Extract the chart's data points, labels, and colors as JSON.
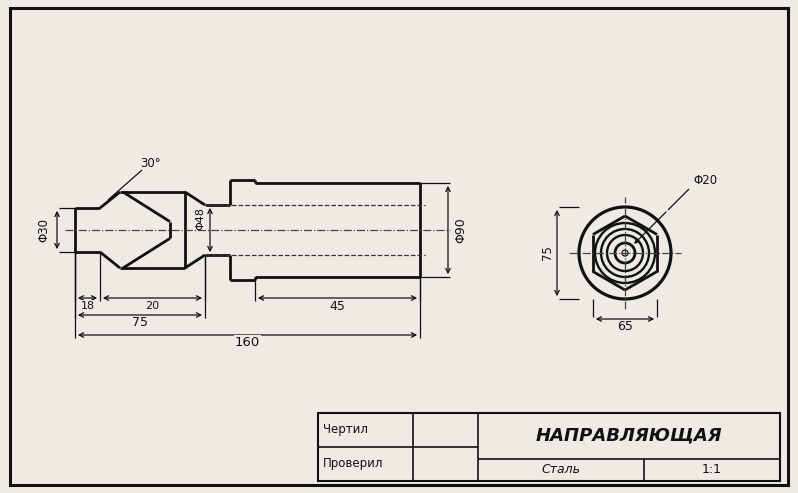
{
  "bg_color": "#eeebe4",
  "line_color": "#111111",
  "title": "НАПРАВЛЯЮЩАЯ",
  "material": "Сталь",
  "scale": "1:1",
  "label_cherter": "Чертил",
  "label_proveril": "Проверил",
  "dims": {
    "d30": "Φ30",
    "d48": "Φ48",
    "d90": "Φ90",
    "d20": "Φ20",
    "l18": "18",
    "l20": "20",
    "l75": "75",
    "l45": "45",
    "l160": "160",
    "h75": "75",
    "hex65": "65",
    "angle": "30°"
  }
}
